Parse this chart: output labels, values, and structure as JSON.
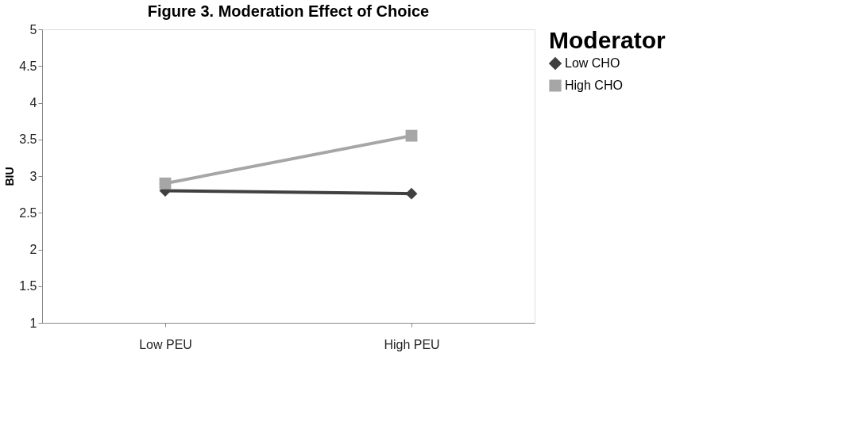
{
  "chart_data": {
    "type": "line",
    "title": "Figure 3. Moderation Effect of Choice",
    "ylabel": "BIU",
    "legend_title": "Moderator",
    "categories": [
      "Low PEU",
      "High PEU"
    ],
    "series": [
      {
        "name": "Low CHO",
        "color": "#404040",
        "marker": "diamond",
        "values": [
          2.8,
          2.76
        ]
      },
      {
        "name": "High CHO",
        "color": "#a6a6a6",
        "marker": "square",
        "values": [
          2.9,
          3.55
        ]
      }
    ],
    "ylim": [
      1,
      5
    ],
    "yticks": [
      1,
      1.5,
      2,
      2.5,
      3,
      3.5,
      4,
      4.5,
      5
    ],
    "grid": false,
    "legend": "right"
  }
}
